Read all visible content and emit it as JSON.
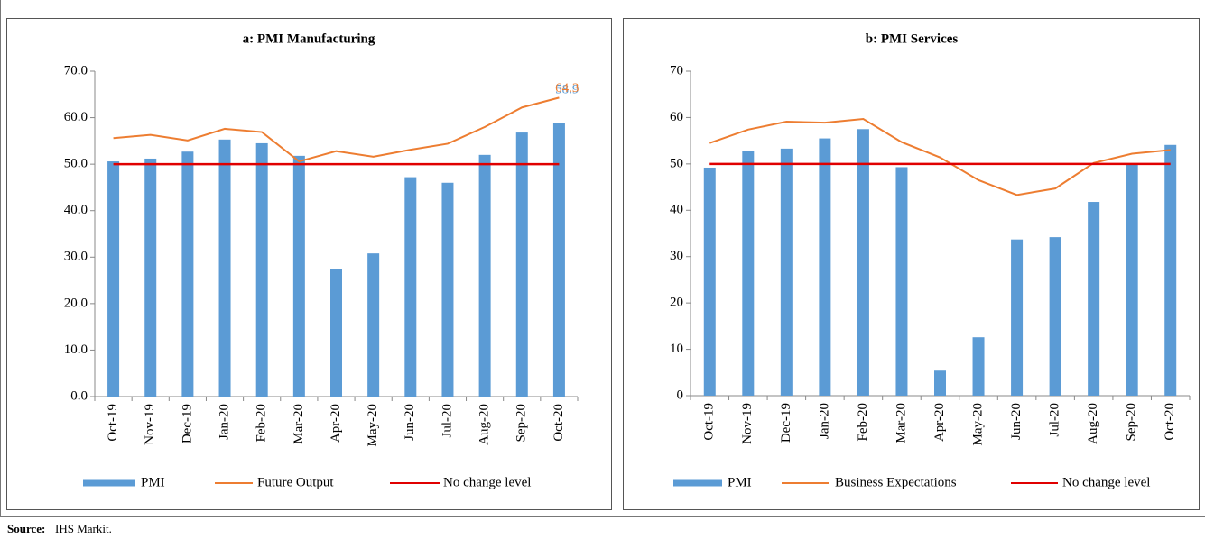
{
  "chart_data": [
    {
      "type": "combo",
      "title": "a: PMI Manufacturing",
      "categories": [
        "Oct-19",
        "Nov-19",
        "Dec-19",
        "Jan-20",
        "Feb-20",
        "Mar-20",
        "Apr-20",
        "May-20",
        "Jun-20",
        "Jul-20",
        "Aug-20",
        "Sep-20",
        "Oct-20"
      ],
      "series": [
        {
          "name": "PMI",
          "type": "bar",
          "color": "#5b9bd5",
          "label_last": true,
          "values": [
            50.6,
            51.2,
            52.7,
            55.3,
            54.5,
            51.8,
            27.4,
            30.8,
            47.2,
            46.0,
            52.0,
            56.8,
            58.9
          ]
        },
        {
          "name": "Future Output",
          "type": "line",
          "color": "#ed7d31",
          "label_last": true,
          "values": [
            55.6,
            56.3,
            55.1,
            57.6,
            56.9,
            50.6,
            52.8,
            51.6,
            53.1,
            54.4,
            58.0,
            62.2,
            64.3
          ]
        },
        {
          "name": "No change level",
          "type": "line",
          "color": "#e00000",
          "values": [
            50,
            50,
            50,
            50,
            50,
            50,
            50,
            50,
            50,
            50,
            50,
            50,
            50
          ]
        }
      ],
      "ylim": [
        0,
        70
      ],
      "yticks": [
        {
          "value": 0,
          "label": "0.0"
        },
        {
          "value": 10,
          "label": "10.0"
        },
        {
          "value": 20,
          "label": "20.0"
        },
        {
          "value": 30,
          "label": "30.0"
        },
        {
          "value": 40,
          "label": "40.0"
        },
        {
          "value": 50,
          "label": "50.0"
        },
        {
          "value": 60,
          "label": "60.0"
        },
        {
          "value": 70,
          "label": "70.0"
        }
      ]
    },
    {
      "type": "combo",
      "title": "b: PMI Services",
      "categories": [
        "Oct-19",
        "Nov-19",
        "Dec-19",
        "Jan-20",
        "Feb-20",
        "Mar-20",
        "Apr-20",
        "May-20",
        "Jun-20",
        "Jul-20",
        "Aug-20",
        "Sep-20",
        "Oct-20"
      ],
      "series": [
        {
          "name": "PMI",
          "type": "bar",
          "color": "#5b9bd5",
          "values": [
            49.2,
            52.7,
            53.3,
            55.5,
            57.5,
            49.3,
            5.4,
            12.6,
            33.7,
            34.2,
            41.8,
            49.8,
            54.1
          ]
        },
        {
          "name": "Business Expectations",
          "type": "line",
          "color": "#ed7d31",
          "values": [
            54.5,
            57.4,
            59.1,
            58.9,
            59.7,
            54.7,
            51.4,
            46.5,
            43.3,
            44.7,
            50.2,
            52.2,
            53.0
          ]
        },
        {
          "name": "No change level",
          "type": "line",
          "color": "#e00000",
          "values": [
            50,
            50,
            50,
            50,
            50,
            50,
            50,
            50,
            50,
            50,
            50,
            50,
            50
          ]
        }
      ],
      "ylim": [
        0,
        70
      ],
      "yticks": [
        0,
        10,
        20,
        30,
        40,
        50,
        60,
        70
      ]
    }
  ],
  "source_label": "Source:",
  "source_text": "IHS Markit."
}
